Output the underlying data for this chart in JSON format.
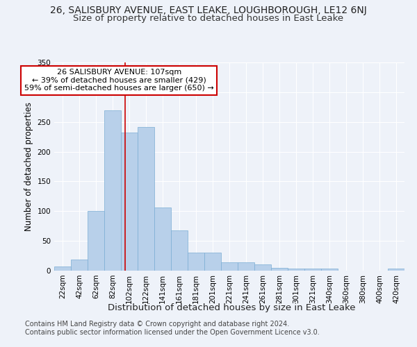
{
  "title": "26, SALISBURY AVENUE, EAST LEAKE, LOUGHBOROUGH, LE12 6NJ",
  "subtitle": "Size of property relative to detached houses in East Leake",
  "xlabel": "Distribution of detached houses by size in East Leake",
  "ylabel": "Number of detached properties",
  "bin_labels": [
    "22sqm",
    "42sqm",
    "62sqm",
    "82sqm",
    "102sqm",
    "122sqm",
    "141sqm",
    "161sqm",
    "181sqm",
    "201sqm",
    "221sqm",
    "241sqm",
    "261sqm",
    "281sqm",
    "301sqm",
    "321sqm",
    "340sqm",
    "360sqm",
    "380sqm",
    "400sqm",
    "420sqm"
  ],
  "bar_heights": [
    7,
    19,
    100,
    270,
    232,
    241,
    106,
    68,
    30,
    30,
    14,
    14,
    10,
    5,
    4,
    4,
    3,
    0,
    0,
    0,
    3
  ],
  "bar_color": "#b8d0ea",
  "bar_edge_color": "#7aadd4",
  "property_size": 107,
  "annotation_text": "26 SALISBURY AVENUE: 107sqm\n← 39% of detached houses are smaller (429)\n59% of semi-detached houses are larger (650) →",
  "annotation_box_color": "#ffffff",
  "annotation_box_edge": "#cc0000",
  "red_line_color": "#cc0000",
  "ylim": [
    0,
    350
  ],
  "background_color": "#eef2f9",
  "footer1": "Contains HM Land Registry data © Crown copyright and database right 2024.",
  "footer2": "Contains public sector information licensed under the Open Government Licence v3.0.",
  "title_fontsize": 10,
  "subtitle_fontsize": 9.5,
  "xlabel_fontsize": 9.5,
  "ylabel_fontsize": 8.5,
  "tick_fontsize": 7.5,
  "annotation_fontsize": 8,
  "footer_fontsize": 7
}
